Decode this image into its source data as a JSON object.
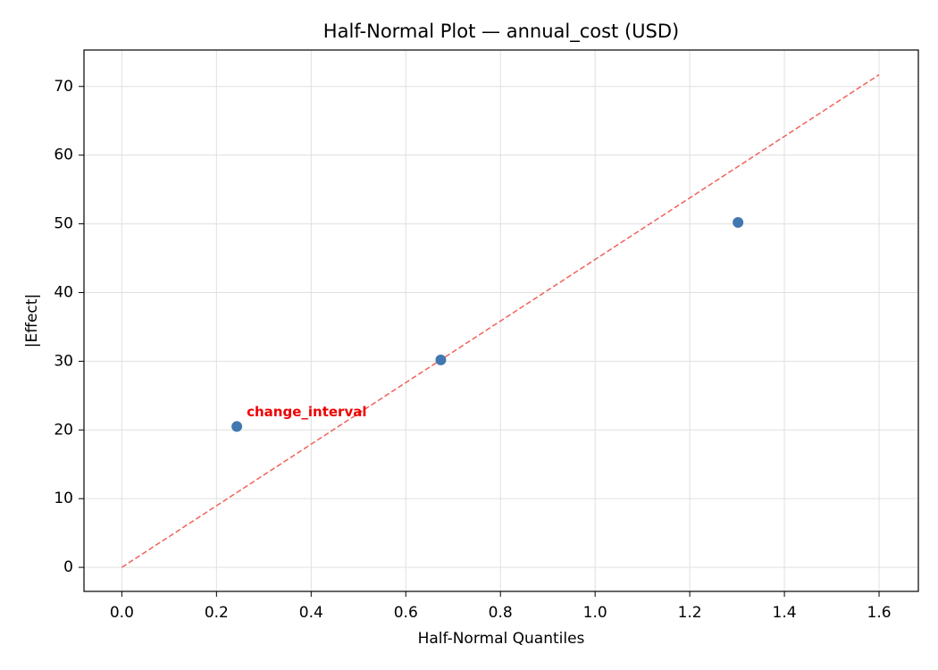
{
  "chart_data": {
    "type": "scatter",
    "title": "Half-Normal Plot — annual_cost (USD)",
    "x_label": "Half-Normal Quantiles",
    "y_label": "|Effect|",
    "series": [
      {
        "name": null,
        "color": "#4178b0",
        "x": [
          0.243,
          0.674,
          1.302
        ],
        "values": [
          20.5,
          30.2,
          50.2
        ]
      }
    ],
    "reference_line": {
      "color": "#f0625a",
      "x": [
        0,
        1.6
      ],
      "y": [
        0,
        71.7
      ]
    },
    "annotations": [
      {
        "text": "change_interval",
        "point": 0,
        "color": "#ee0000"
      }
    ],
    "xlim": [
      -0.08,
      1.683
    ],
    "ylim": [
      -3.5,
      75.3
    ],
    "xticks": [
      {
        "value": 0,
        "label": "0.0"
      },
      0.2,
      0.4,
      0.6,
      0.8,
      {
        "value": 1,
        "label": "1.0"
      },
      1.2,
      1.4,
      1.6
    ],
    "yticks": [
      0,
      10,
      20,
      30,
      40,
      50,
      60,
      70
    ],
    "grid": true
  }
}
